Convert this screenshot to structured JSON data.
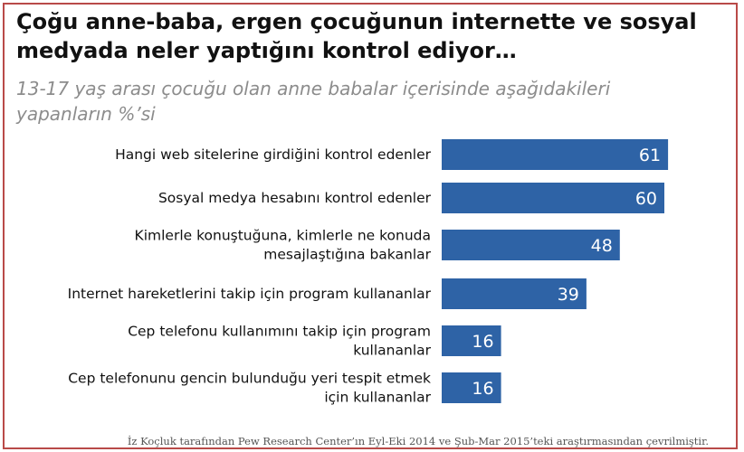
{
  "chart_data": {
    "type": "bar",
    "orientation": "horizontal",
    "title": "Çoğu anne-baba, ergen çocuğunun internette ve sosyal medyada neler yaptığını kontrol ediyor…",
    "subtitle": "13-17 yaş arası çocuğu olan anne babalar içerisinde aşağıdakileri yapanların %’si",
    "categories": [
      "Hangi web sitelerine girdiğini kontrol edenler",
      "Sosyal medya hesabını kontrol edenler",
      "Kimlerle konuştuğuna, kimlerle ne konuda mesajlaştığına bakanlar",
      "Internet hareketlerini takip için program kullananlar",
      "Cep telefonu kullanımını takip için program kullananlar",
      "Cep telefonunu gencin bulunduğu yeri tespit etmek için kullananlar"
    ],
    "category_lines": [
      [
        "Hangi web sitelerine girdiğini kontrol edenler"
      ],
      [
        "Sosyal medya hesabını kontrol edenler"
      ],
      [
        "Kimlerle konuştuğuna, kimlerle ne konuda",
        "mesajlaştığına bakanlar"
      ],
      [
        "Internet hareketlerini takip için program kullananlar"
      ],
      [
        "Cep telefonu kullanımını takip için program",
        "kullananlar"
      ],
      [
        "Cep telefonunu gencin bulunduğu yeri tespit etmek",
        "için kullananlar"
      ]
    ],
    "values": [
      61,
      60,
      48,
      39,
      16,
      16
    ],
    "data_labels_shown": true,
    "xlim": [
      0,
      61
    ],
    "grid": false,
    "legend": "none",
    "bar_color": "#2e63a6"
  },
  "source_note": "İz Koçluk tarafından Pew Research Center’ın Eyl-Eki 2014 ve Şub-Mar  2015’teki araştırmasından çevrilmiştir.",
  "colors": {
    "frame_border": "#b94a48",
    "title": "#111111",
    "subtitle": "#8c8c8c"
  }
}
